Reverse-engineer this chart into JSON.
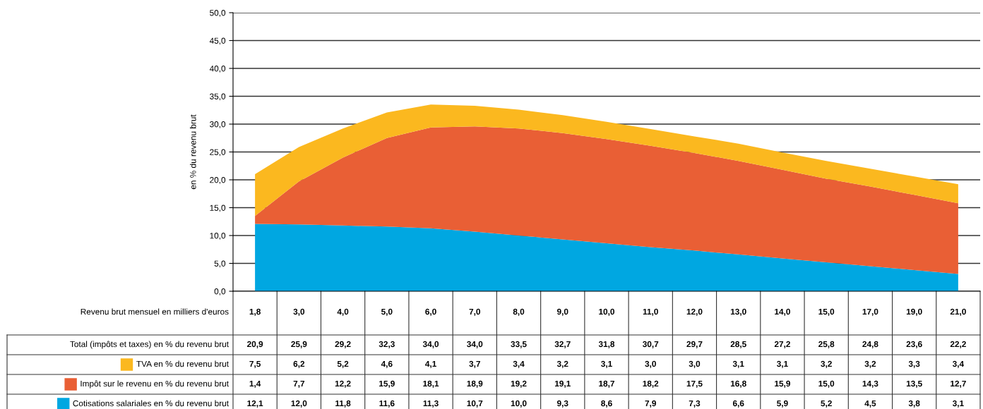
{
  "chart_data": {
    "type": "area",
    "stacked": true,
    "ylabel": "en % du revenu brut",
    "xlabel": "Revenu brut mensuel en milliers d'euros",
    "categories": [
      "1,8",
      "3,0",
      "4,0",
      "5,0",
      "6,0",
      "7,0",
      "8,0",
      "9,0",
      "10,0",
      "11,0",
      "12,0",
      "13,0",
      "14,0",
      "15,0",
      "17,0",
      "19,0",
      "21,0"
    ],
    "ylim": [
      0,
      50
    ],
    "yticks": [
      {
        "value": 0,
        "label": "0,0"
      },
      {
        "value": 5,
        "label": "5,0"
      },
      {
        "value": 10,
        "label": "10,0"
      },
      {
        "value": 15,
        "label": "15,0"
      },
      {
        "value": 20,
        "label": "20,0"
      },
      {
        "value": 25,
        "label": "25,0"
      },
      {
        "value": 30,
        "label": "30,0"
      },
      {
        "value": 35,
        "label": "35,0"
      },
      {
        "value": 40,
        "label": "40,0"
      },
      {
        "value": 45,
        "label": "45,0"
      },
      {
        "value": 50,
        "label": "50,0"
      }
    ],
    "grid": "y",
    "legend": "bottom",
    "annotations": [
      "Total (impôts et taxes) en % du revenu brut",
      "20,9",
      "25,9",
      "29,2",
      "32,3",
      "34,0",
      "34,0",
      "33,5",
      "32,7",
      "31,8",
      "30,7",
      "29,7",
      "28,5",
      "27,2",
      "25,8",
      "24,8",
      "23,6",
      "22,2"
    ],
    "series": [
      {
        "name": "Cotisations salariales en % du revenu brut",
        "color": "#00a7e1",
        "values": [
          12.1,
          12.0,
          11.8,
          11.6,
          11.3,
          10.7,
          10.0,
          9.3,
          8.6,
          7.9,
          7.3,
          6.6,
          5.9,
          5.2,
          4.5,
          3.8,
          3.1
        ],
        "value_labels": [
          "12,1",
          "12,0",
          "11,8",
          "11,6",
          "11,3",
          "10,7",
          "10,0",
          "9,3",
          "8,6",
          "7,9",
          "7,3",
          "6,6",
          "5,9",
          "5,2",
          "4,5",
          "3,8",
          "3,1"
        ]
      },
      {
        "name": "Impôt sur le revenu en % du revenu brut",
        "color": "#e95f35",
        "values": [
          1.4,
          7.7,
          12.2,
          15.9,
          18.1,
          18.9,
          19.2,
          19.1,
          18.7,
          18.2,
          17.5,
          16.8,
          15.9,
          15.0,
          14.3,
          13.5,
          12.7
        ],
        "value_labels": [
          "1,4",
          "7,7",
          "12,2",
          "15,9",
          "18,1",
          "18,9",
          "19,2",
          "19,1",
          "18,7",
          "18,2",
          "17,5",
          "16,8",
          "15,9",
          "15,0",
          "14,3",
          "13,5",
          "12,7"
        ]
      },
      {
        "name": "TVA en % du revenu brut",
        "color": "#fbb81f",
        "values": [
          7.5,
          6.2,
          5.2,
          4.6,
          4.1,
          3.7,
          3.4,
          3.2,
          3.1,
          3.0,
          3.0,
          3.1,
          3.1,
          3.2,
          3.2,
          3.3,
          3.4
        ],
        "value_labels": [
          "7,5",
          "6,2",
          "5,2",
          "4,6",
          "4,1",
          "3,7",
          "3,4",
          "3,2",
          "3,1",
          "3,0",
          "3,0",
          "3,1",
          "3,1",
          "3,2",
          "3,2",
          "3,3",
          "3,4"
        ]
      }
    ]
  }
}
